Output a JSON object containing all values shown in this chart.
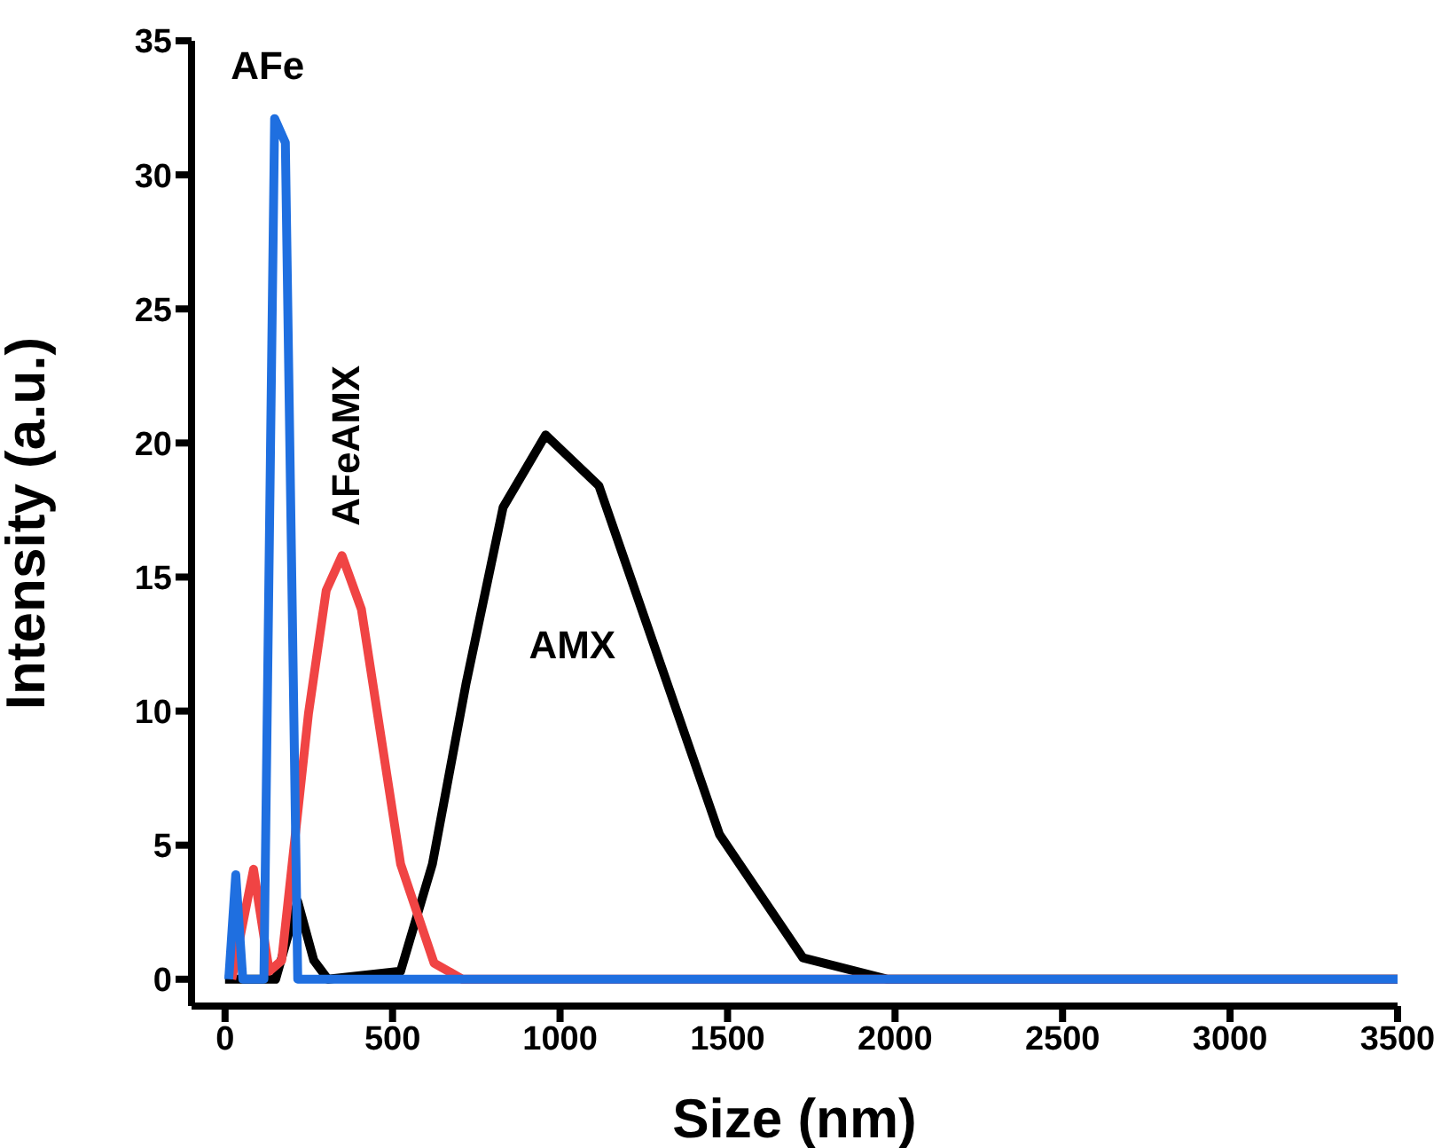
{
  "chart_data": {
    "type": "line",
    "xlabel": "Size (nm)",
    "ylabel": "Intensity (a.u.)",
    "xlim": [
      -100,
      3500
    ],
    "ylim": [
      -1,
      35
    ],
    "xticks": [
      0,
      500,
      1000,
      1500,
      2000,
      2500,
      3000,
      3500
    ],
    "yticks": [
      0,
      5,
      10,
      15,
      20,
      25,
      30,
      35
    ],
    "grid": false,
    "legend": false,
    "marker": "none",
    "line_style": "solid",
    "series": [
      {
        "name": "AMX",
        "color": "#000000",
        "x": [
          0,
          151,
          217,
          265,
          307,
          524,
          619,
          719,
          830,
          957,
          1116,
          1476,
          1725,
          1978,
          3500
        ],
        "values": [
          0,
          0,
          2.9,
          0.7,
          0,
          0.3,
          4.3,
          11.0,
          17.6,
          20.3,
          18.4,
          5.4,
          0.8,
          0,
          0
        ]
      },
      {
        "name": "AFeAMX",
        "color": "#f04444",
        "x": [
          20,
          85,
          132,
          169,
          249,
          302,
          349,
          407,
          524,
          624,
          709,
          3500
        ],
        "values": [
          0,
          4.1,
          0.3,
          0.7,
          9.9,
          14.5,
          15.8,
          13.8,
          4.3,
          0.6,
          0,
          0
        ]
      },
      {
        "name": "AFe",
        "color": "#1f6fe0",
        "x": [
          11,
          32,
          53,
          116,
          148,
          180,
          217,
          3500
        ],
        "values": [
          0,
          3.9,
          0,
          0,
          32.1,
          31.2,
          0,
          0
        ]
      }
    ]
  }
}
